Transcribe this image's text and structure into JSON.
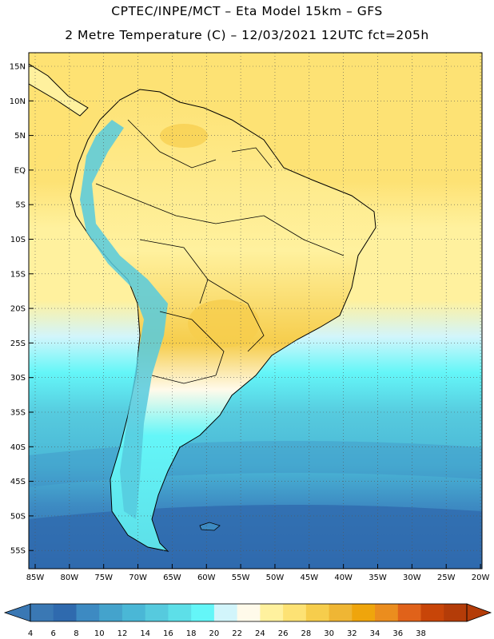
{
  "header": {
    "line1": "CPTEC/INPE/MCT –  Eta Model 15km – GFS",
    "line2": "2 Metre Temperature (C) – 12/03/2021 12UTC fct=205h"
  },
  "axes": {
    "lat_labels": [
      "15N",
      "10N",
      "5N",
      "EQ",
      "5S",
      "10S",
      "15S",
      "20S",
      "25S",
      "30S",
      "35S",
      "40S",
      "45S",
      "50S",
      "55S"
    ],
    "lon_labels": [
      "85W",
      "80W",
      "75W",
      "70W",
      "65W",
      "60W",
      "55W",
      "50W",
      "45W",
      "40W",
      "35W",
      "30W",
      "25W",
      "20W"
    ]
  },
  "colorbar": {
    "labels": [
      "4",
      "6",
      "8",
      "10",
      "12",
      "14",
      "16",
      "18",
      "20",
      "22",
      "24",
      "26",
      "28",
      "30",
      "32",
      "34",
      "36",
      "38"
    ],
    "colors": [
      "#3a78b4",
      "#2f6aae",
      "#3d8ac2",
      "#44a3cc",
      "#4ab7d6",
      "#56cade",
      "#5ddfe8",
      "#64f6f8",
      "#d2f5fb",
      "#fffaea",
      "#fff19e",
      "#fde274",
      "#f6cd4c",
      "#efb634",
      "#efa50c",
      "#eb8d1e",
      "#e0621a",
      "#c84508",
      "#b43c08"
    ]
  },
  "regions": {
    "ocean_north": "#fde274",
    "ocean_mid": "#fff19e",
    "ocean_south": "#44a3cc"
  }
}
